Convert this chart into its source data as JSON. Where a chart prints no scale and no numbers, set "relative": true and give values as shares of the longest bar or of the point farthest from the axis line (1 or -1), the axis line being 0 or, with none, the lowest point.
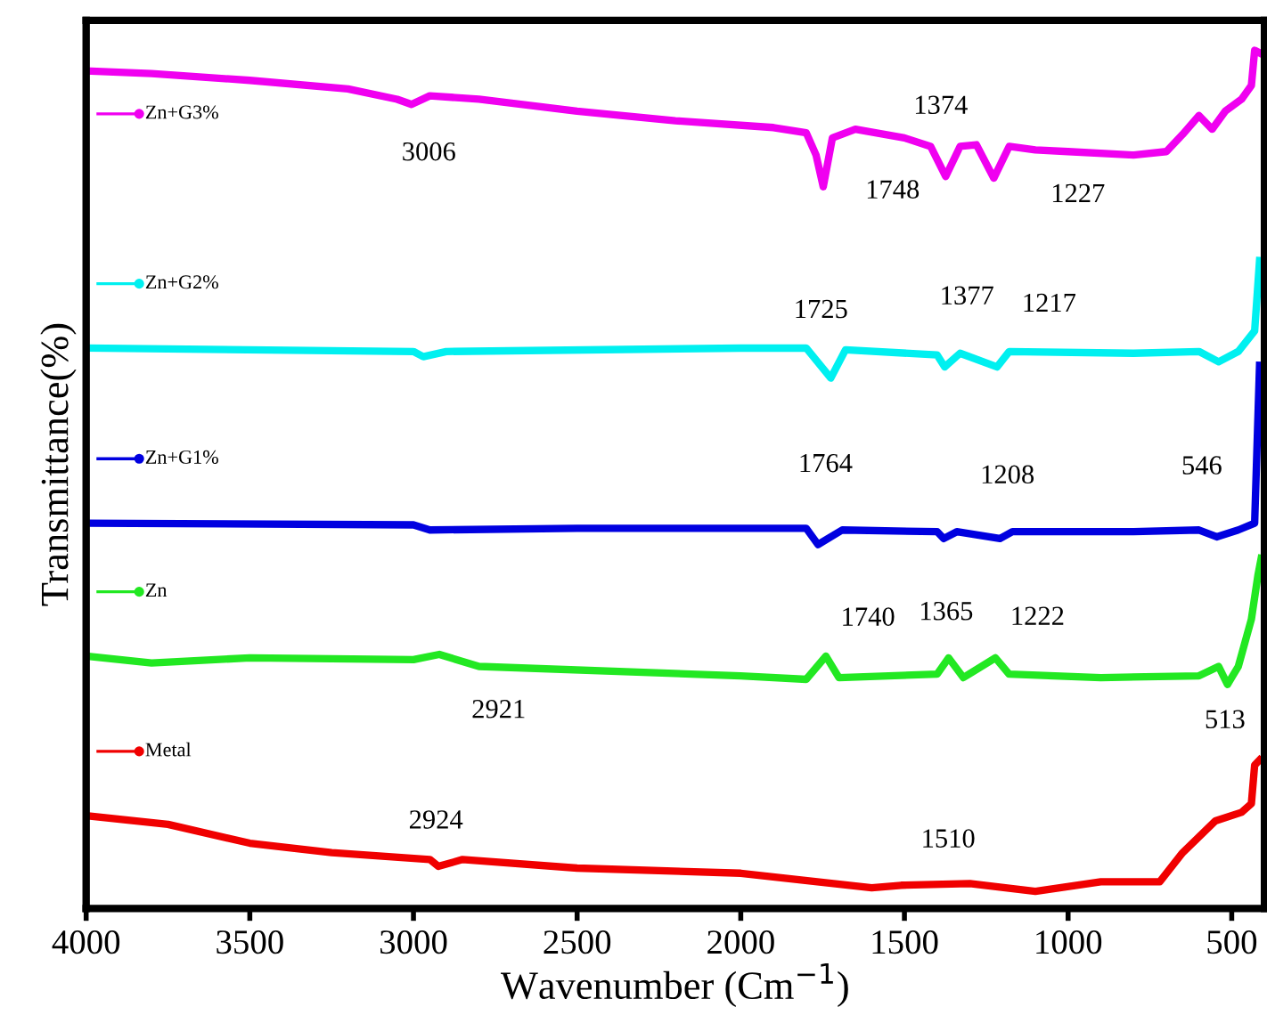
{
  "chart_data": {
    "type": "line",
    "relative": true,
    "xlabel": "Wavenumber (Cm$^{−1}$)",
    "ylabel": "Transmittance(%)",
    "xlim": [
      4000,
      400
    ],
    "xticks": [
      4000,
      3500,
      3000,
      2500,
      2000,
      1500,
      1000,
      500
    ],
    "tick_labels": "x",
    "grid": false,
    "marker": "none",
    "line_style": "solid",
    "legend": "left",
    "series": [
      {
        "name": "Zn+G3%",
        "color": "#f000f0",
        "x": [
          4000,
          3800,
          3500,
          3200,
          3050,
          3006,
          2950,
          2800,
          2500,
          2200,
          1900,
          1800,
          1770,
          1748,
          1720,
          1650,
          1500,
          1420,
          1374,
          1330,
          1280,
          1227,
          1180,
          1100,
          1000,
          800,
          700,
          650,
          600,
          560,
          520,
          470,
          440,
          430,
          410
        ],
        "values": [
          0.976,
          0.973,
          0.965,
          0.955,
          0.943,
          0.937,
          0.947,
          0.943,
          0.929,
          0.918,
          0.91,
          0.904,
          0.878,
          0.841,
          0.898,
          0.908,
          0.898,
          0.888,
          0.853,
          0.888,
          0.89,
          0.851,
          0.888,
          0.884,
          0.882,
          0.878,
          0.882,
          0.902,
          0.924,
          0.908,
          0.929,
          0.943,
          0.959,
          1.0,
          0.996
        ]
      },
      {
        "name": "Zn+G2%",
        "color": "#00f0f0",
        "x": [
          4000,
          3000,
          2970,
          2900,
          2000,
          1800,
          1725,
          1680,
          1400,
          1377,
          1330,
          1217,
          1180,
          800,
          600,
          540,
          480,
          430,
          415
        ],
        "values": [
          0.653,
          0.649,
          0.643,
          0.649,
          0.653,
          0.653,
          0.618,
          0.651,
          0.645,
          0.631,
          0.647,
          0.631,
          0.649,
          0.647,
          0.649,
          0.637,
          0.649,
          0.673,
          0.755
        ]
      },
      {
        "name": "Zn+G1%",
        "color": "#0000e0",
        "x": [
          4000,
          3000,
          2950,
          2500,
          1800,
          1764,
          1690,
          1400,
          1380,
          1340,
          1208,
          1170,
          800,
          600,
          546,
          480,
          430,
          415
        ],
        "values": [
          0.449,
          0.447,
          0.441,
          0.443,
          0.443,
          0.424,
          0.441,
          0.439,
          0.431,
          0.439,
          0.431,
          0.439,
          0.439,
          0.441,
          0.433,
          0.441,
          0.449,
          0.633
        ]
      },
      {
        "name": "Zn",
        "color": "#22e822",
        "x": [
          4000,
          3800,
          3500,
          3000,
          2921,
          2800,
          2000,
          1800,
          1740,
          1700,
          1400,
          1365,
          1320,
          1222,
          1180,
          900,
          600,
          540,
          513,
          480,
          440,
          420,
          410
        ],
        "values": [
          0.294,
          0.286,
          0.292,
          0.29,
          0.296,
          0.282,
          0.271,
          0.267,
          0.294,
          0.269,
          0.273,
          0.292,
          0.269,
          0.292,
          0.273,
          0.269,
          0.271,
          0.282,
          0.261,
          0.282,
          0.337,
          0.388,
          0.408
        ]
      },
      {
        "name": "Metal",
        "color": "#f00000",
        "x": [
          4000,
          3750,
          3500,
          3250,
          2950,
          2924,
          2850,
          2500,
          2000,
          1600,
          1510,
          1300,
          1100,
          900,
          720,
          650,
          550,
          470,
          440,
          430,
          415
        ],
        "values": [
          0.108,
          0.098,
          0.076,
          0.065,
          0.057,
          0.049,
          0.057,
          0.047,
          0.041,
          0.024,
          0.027,
          0.029,
          0.02,
          0.031,
          0.031,
          0.065,
          0.102,
          0.112,
          0.122,
          0.167,
          0.173
        ]
      }
    ],
    "annotations": [
      {
        "text": "3006",
        "x": 3006,
        "y": 0.937
      },
      {
        "text": "1374",
        "x": 1374,
        "y": 0.853
      },
      {
        "text": "1748",
        "x": 1748,
        "y": 0.841
      },
      {
        "text": "1227",
        "x": 1227,
        "y": 0.851
      },
      {
        "text": "1725",
        "x": 1725,
        "y": 0.618
      },
      {
        "text": "1377",
        "x": 1377,
        "y": 0.631
      },
      {
        "text": "1217",
        "x": 1217,
        "y": 0.631
      },
      {
        "text": "1764",
        "x": 1764,
        "y": 0.424
      },
      {
        "text": "1208",
        "x": 1208,
        "y": 0.431
      },
      {
        "text": "546",
        "x": 546,
        "y": 0.433
      },
      {
        "text": "1740",
        "x": 1740,
        "y": 0.294
      },
      {
        "text": "1365",
        "x": 1365,
        "y": 0.292
      },
      {
        "text": "1222",
        "x": 1222,
        "y": 0.292
      },
      {
        "text": "2921",
        "x": 2921,
        "y": 0.296
      },
      {
        "text": "513",
        "x": 513,
        "y": 0.261
      },
      {
        "text": "2924",
        "x": 2924,
        "y": 0.049
      },
      {
        "text": "1510",
        "x": 1510,
        "y": 0.027
      }
    ]
  }
}
